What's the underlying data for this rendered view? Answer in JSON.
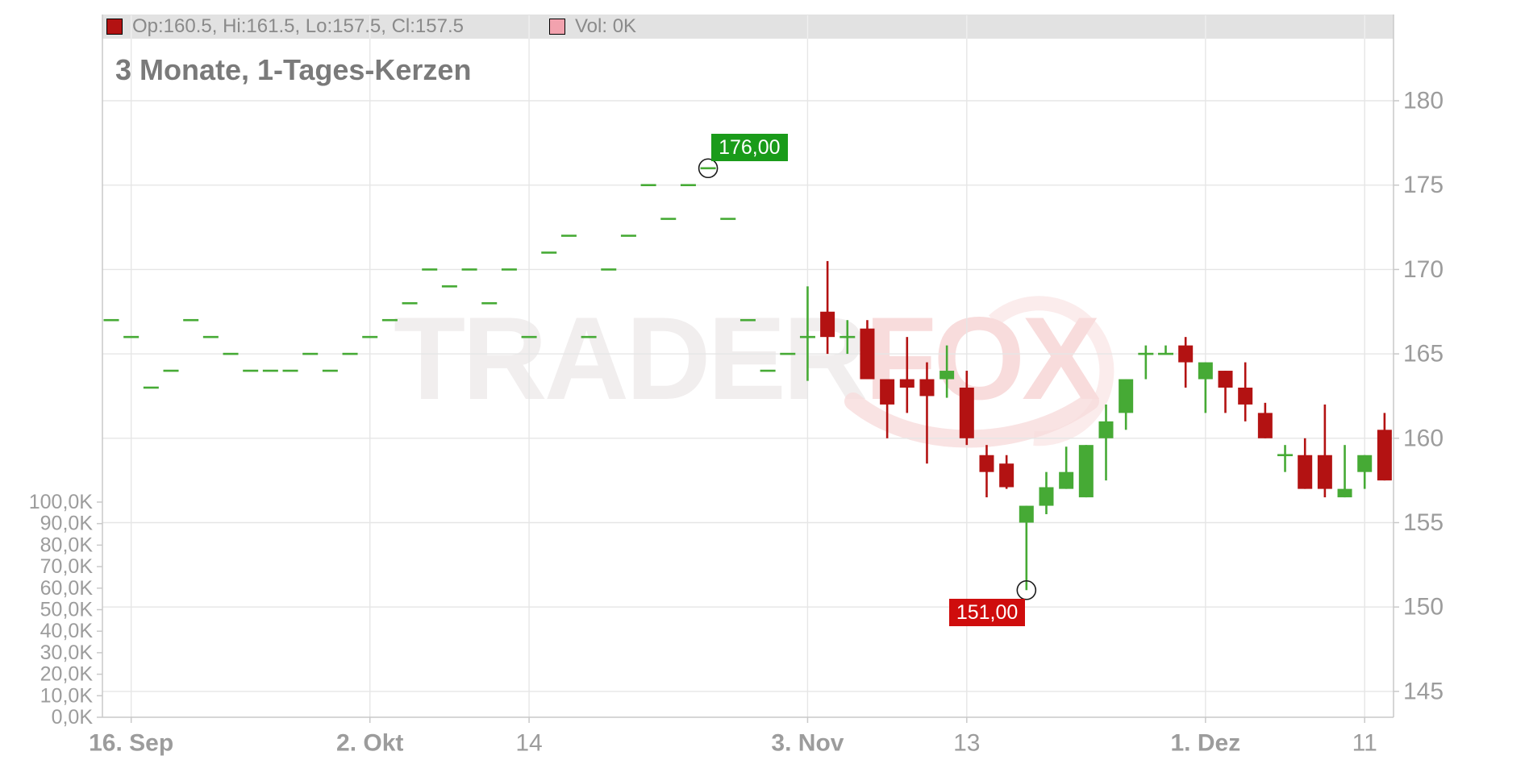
{
  "legend": {
    "ohlc": "Op:160.5, Hi:161.5, Lo:157.5, Cl:157.5",
    "volume": "Vol: 0K"
  },
  "title": "3 Monate, 1-Tages-Kerzen",
  "watermark": {
    "part1": "TRADER",
    "part2": "FOX"
  },
  "markers": {
    "high": {
      "label": "176,00",
      "price": 176,
      "candle_index": 30
    },
    "low": {
      "label": "151,00",
      "price": 151,
      "candle_index": 46
    }
  },
  "colors": {
    "up": "#46aa35",
    "down": "#b31212",
    "legend_ohlc_swatch": "#b31212",
    "legend_volume_swatch": "#f2a2ae",
    "badge_high_bg": "#1a9b1a",
    "badge_low_bg": "#cf0d0d",
    "grid": "#e6e6e6",
    "grid_on_bar": "#efefef",
    "axis": "#c9c9c9",
    "axis_label": "#9c9c9c",
    "watermark_gray": "#f1eeee",
    "watermark_pink": "#f8dcdc",
    "marker_stroke": "#1a1a1a"
  },
  "chart_data": {
    "type": "candlestick",
    "title": "3 Monate, 1-Tages-Kerzen",
    "price_axis": {
      "side": "right",
      "min": 145,
      "max": 180,
      "tick_step": 5,
      "ticks": [
        145,
        150,
        155,
        160,
        165,
        170,
        175,
        180
      ]
    },
    "volume_axis": {
      "side": "left",
      "unit": "K",
      "labels": [
        "0,0K",
        "10,0K",
        "20,0K",
        "30,0K",
        "40,0K",
        "50,0K",
        "60,0K",
        "70,0K",
        "80,0K",
        "90,0K",
        "100,0K"
      ]
    },
    "x_ticks": [
      {
        "label": "16. Sep",
        "index": 1,
        "bold": true
      },
      {
        "label": "2. Okt",
        "index": 13,
        "bold": true
      },
      {
        "label": "14",
        "index": 21,
        "bold": false
      },
      {
        "label": "3. Nov",
        "index": 35,
        "bold": true
      },
      {
        "label": "13",
        "index": 43,
        "bold": false
      },
      {
        "label": "1. Dez",
        "index": 55,
        "bold": true
      },
      {
        "label": "11",
        "index": 63,
        "bold": false
      }
    ],
    "grid": true,
    "volume_bars_visible": false,
    "candles_ohlc": [
      [
        167,
        167,
        167,
        167
      ],
      [
        166,
        166,
        166,
        166
      ],
      [
        163,
        163,
        163,
        163
      ],
      [
        164,
        164,
        164,
        164
      ],
      [
        167,
        167,
        167,
        167
      ],
      [
        166,
        166,
        166,
        166
      ],
      [
        165,
        165,
        165,
        165
      ],
      [
        164,
        164,
        164,
        164
      ],
      [
        164,
        164,
        164,
        164
      ],
      [
        164,
        164,
        164,
        164
      ],
      [
        165,
        165,
        165,
        165
      ],
      [
        164,
        164,
        164,
        164
      ],
      [
        165,
        165,
        165,
        165
      ],
      [
        166,
        166,
        166,
        166
      ],
      [
        167,
        167,
        167,
        167
      ],
      [
        168,
        168,
        168,
        168
      ],
      [
        170,
        170,
        170,
        170
      ],
      [
        169,
        169,
        169,
        169
      ],
      [
        170,
        170,
        170,
        170
      ],
      [
        168,
        168,
        168,
        168
      ],
      [
        170,
        170,
        170,
        170
      ],
      [
        166,
        166,
        166,
        166
      ],
      [
        171,
        171,
        171,
        171
      ],
      [
        172,
        172,
        172,
        172
      ],
      [
        166,
        166,
        166,
        166
      ],
      [
        170,
        170,
        170,
        170
      ],
      [
        172,
        172,
        172,
        172
      ],
      [
        175,
        175,
        175,
        175
      ],
      [
        173,
        173,
        173,
        173
      ],
      [
        175,
        175,
        175,
        175
      ],
      [
        176,
        176,
        176,
        176
      ],
      [
        173,
        173,
        173,
        173
      ],
      [
        167,
        167,
        167,
        167
      ],
      [
        164,
        164,
        164,
        164
      ],
      [
        165,
        165,
        165,
        165
      ],
      [
        166,
        169,
        163.4,
        166
      ],
      [
        167.5,
        170.5,
        165,
        166
      ],
      [
        166,
        167,
        165,
        166
      ],
      [
        166.5,
        167,
        163.5,
        163.5
      ],
      [
        163.5,
        163.5,
        160,
        162
      ],
      [
        163.5,
        166,
        161.5,
        163
      ],
      [
        163.5,
        164.5,
        158.5,
        162.5
      ],
      [
        163.5,
        165.5,
        162.4,
        164
      ],
      [
        163,
        164,
        159.6,
        160
      ],
      [
        159,
        159.6,
        156.5,
        158
      ],
      [
        158.5,
        159,
        157,
        157.1
      ],
      [
        155,
        156,
        151,
        156
      ],
      [
        156,
        158,
        155.5,
        157.1
      ],
      [
        157,
        159.5,
        157,
        158
      ],
      [
        156.5,
        159.6,
        156.5,
        159.6
      ],
      [
        160,
        162,
        157.5,
        161
      ],
      [
        161.5,
        163.5,
        160.5,
        163.5
      ],
      [
        165,
        165.5,
        163.5,
        165
      ],
      [
        165,
        165.5,
        165,
        165
      ],
      [
        165.5,
        166,
        163,
        164.5
      ],
      [
        163.5,
        164.5,
        161.5,
        164.5
      ],
      [
        164,
        164,
        161.5,
        163
      ],
      [
        163,
        164.5,
        161,
        162
      ],
      [
        161.5,
        162.1,
        160,
        160
      ],
      [
        159,
        159.6,
        158,
        159
      ],
      [
        159,
        160,
        157,
        157
      ],
      [
        159,
        162,
        156.5,
        157
      ],
      [
        156.5,
        159.6,
        156.5,
        157
      ],
      [
        158,
        159,
        157,
        159
      ],
      [
        160.5,
        161.5,
        157.5,
        157.5
      ]
    ]
  }
}
